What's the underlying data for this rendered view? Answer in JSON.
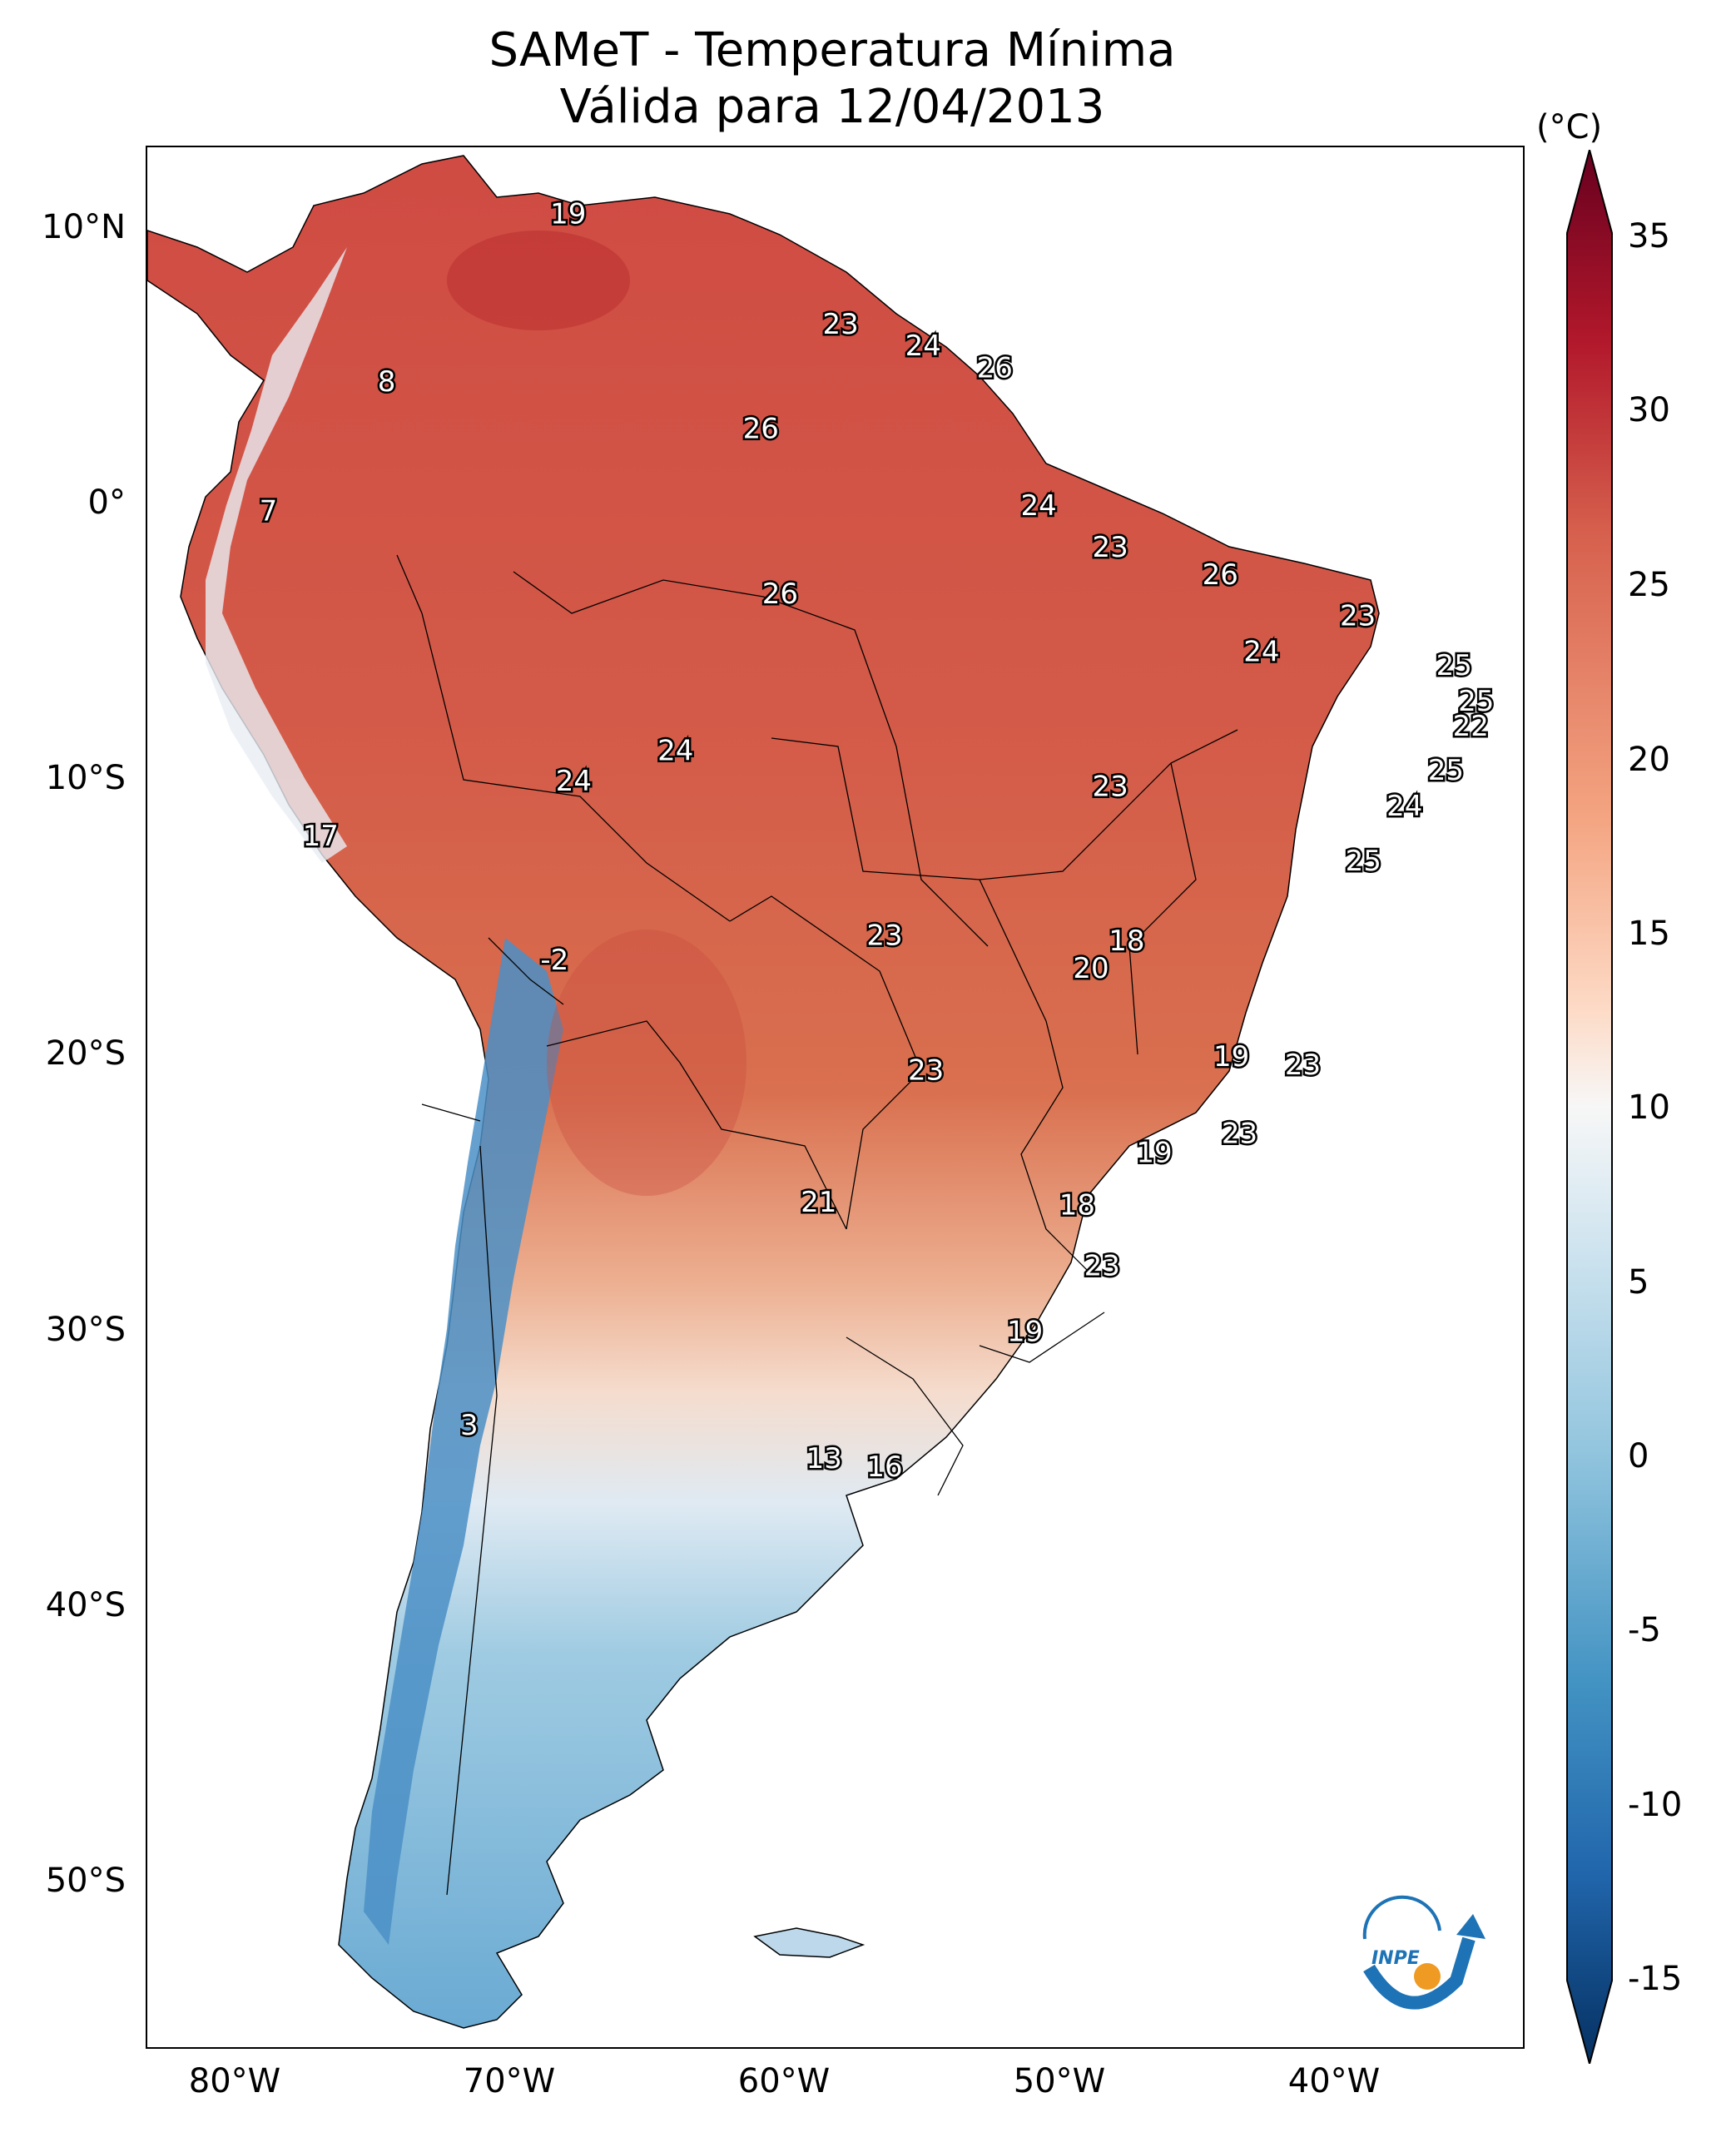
{
  "title": {
    "line1": "SAMeT - Temperatura Mínima",
    "line2": "Válida para 12/04/2013"
  },
  "map": {
    "lat_ticks": [
      "10°N",
      "0°",
      "10°S",
      "20°S",
      "30°S",
      "40°S",
      "50°S"
    ],
    "lon_ticks": [
      "80°W",
      "70°W",
      "60°W",
      "50°W",
      "40°W"
    ],
    "extent": {
      "lon_min": -83,
      "lon_max": -33,
      "lat_min": -56,
      "lat_max": 13
    },
    "station_values": [
      {
        "label": "19",
        "lon": -67.7,
        "lat": 10.6
      },
      {
        "label": "8",
        "lon": -74.3,
        "lat": 4.5
      },
      {
        "label": "23",
        "lon": -57.8,
        "lat": 6.6
      },
      {
        "label": "24",
        "lon": -54.8,
        "lat": 5.8
      },
      {
        "label": "26",
        "lon": -52.2,
        "lat": 5.0
      },
      {
        "label": "26",
        "lon": -60.7,
        "lat": 2.8
      },
      {
        "label": "7",
        "lon": -78.6,
        "lat": -0.2
      },
      {
        "label": "24",
        "lon": -50.6,
        "lat": 0.0
      },
      {
        "label": "23",
        "lon": -48.0,
        "lat": -1.5
      },
      {
        "label": "26",
        "lon": -44.0,
        "lat": -2.5
      },
      {
        "label": "23",
        "lon": -39.0,
        "lat": -4.0
      },
      {
        "label": "26",
        "lon": -60.0,
        "lat": -3.2
      },
      {
        "label": "24",
        "lon": -42.5,
        "lat": -5.3
      },
      {
        "label": "25",
        "lon": -35.5,
        "lat": -5.8
      },
      {
        "label": "25",
        "lon": -34.7,
        "lat": -7.1
      },
      {
        "label": "22",
        "lon": -34.9,
        "lat": -8.0
      },
      {
        "label": "24",
        "lon": -63.8,
        "lat": -8.9
      },
      {
        "label": "24",
        "lon": -67.5,
        "lat": -10.0
      },
      {
        "label": "23",
        "lon": -48.0,
        "lat": -10.2
      },
      {
        "label": "25",
        "lon": -35.8,
        "lat": -9.6
      },
      {
        "label": "24",
        "lon": -37.3,
        "lat": -10.9
      },
      {
        "label": "17",
        "lon": -76.7,
        "lat": -12.0
      },
      {
        "label": "25",
        "lon": -38.8,
        "lat": -12.9
      },
      {
        "label": "23",
        "lon": -56.2,
        "lat": -15.6
      },
      {
        "label": "18",
        "lon": -47.4,
        "lat": -15.8
      },
      {
        "label": "20",
        "lon": -48.7,
        "lat": -16.8
      },
      {
        "label": "-2",
        "lon": -68.2,
        "lat": -16.5
      },
      {
        "label": "19",
        "lon": -43.6,
        "lat": -20.0
      },
      {
        "label": "23",
        "lon": -54.7,
        "lat": -20.5
      },
      {
        "label": "23",
        "lon": -41.0,
        "lat": -20.3
      },
      {
        "label": "23",
        "lon": -43.3,
        "lat": -22.8
      },
      {
        "label": "19",
        "lon": -46.4,
        "lat": -23.5
      },
      {
        "label": "21",
        "lon": -58.6,
        "lat": -25.3
      },
      {
        "label": "18",
        "lon": -49.2,
        "lat": -25.4
      },
      {
        "label": "23",
        "lon": -48.3,
        "lat": -27.6
      },
      {
        "label": "19",
        "lon": -51.1,
        "lat": -30.0
      },
      {
        "label": "3",
        "lon": -71.3,
        "lat": -33.4
      },
      {
        "label": "13",
        "lon": -58.4,
        "lat": -34.6
      },
      {
        "label": "16",
        "lon": -56.2,
        "lat": -34.9
      }
    ]
  },
  "colorbar": {
    "unit": "(°C)",
    "tick_labels": [
      "35",
      "30",
      "25",
      "20",
      "15",
      "10",
      "5",
      "0",
      "-5",
      "-10",
      "-15"
    ],
    "range": [
      -15,
      35
    ],
    "colors": [
      "#053061",
      "#2166ac",
      "#4393c3",
      "#92c5de",
      "#d1e5f0",
      "#f7f7f7",
      "#fddbc7",
      "#f4a582",
      "#d6604d",
      "#b2182b",
      "#67001f"
    ]
  },
  "logo": {
    "text": "INPE"
  },
  "colors": {
    "coast": "#000000",
    "warm": "#d6604d",
    "hot": "#c43c39",
    "cool": "#92c5de",
    "cold": "#2f76b7",
    "logo_blue": "#1d73b5",
    "logo_orange": "#ef9a23"
  }
}
